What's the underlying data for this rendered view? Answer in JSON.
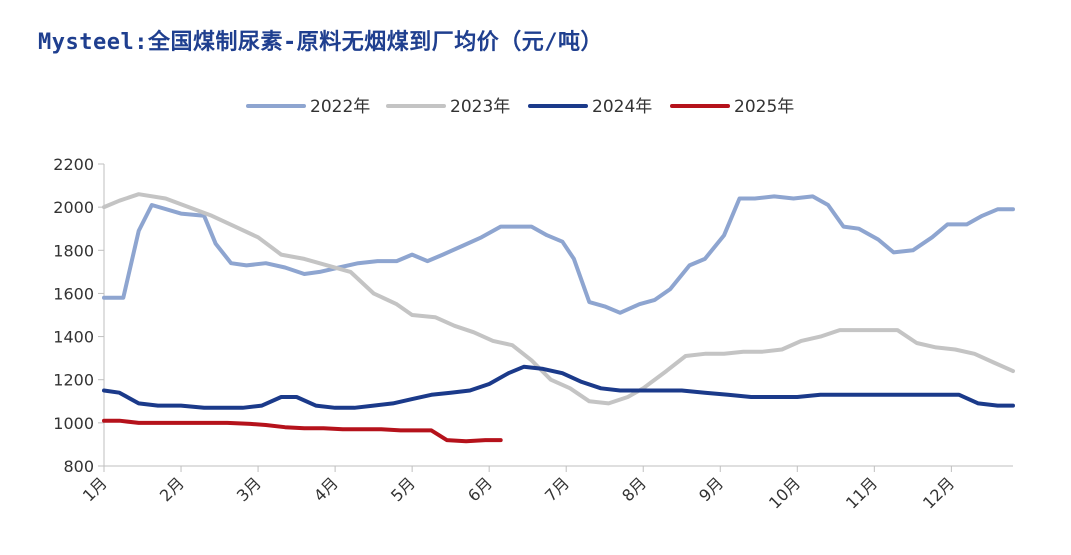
{
  "chart_data": {
    "type": "line",
    "title": "Mysteel:全国煤制尿素-原料无烟煤到厂均价（元/吨）",
    "xlabel": "",
    "ylabel": "",
    "ylim": [
      800,
      2200
    ],
    "yticks": [
      800,
      1000,
      1200,
      1400,
      1600,
      1800,
      2000,
      2200
    ],
    "xlim": [
      1,
      12.8
    ],
    "categories": [
      "1月",
      "2月",
      "3月",
      "4月",
      "5月",
      "6月",
      "7月",
      "8月",
      "9月",
      "10月",
      "11月",
      "12月"
    ],
    "grid": false,
    "legend": "top-center",
    "series": [
      {
        "name": "2022年",
        "color": "#8ea5d0",
        "x": [
          1.0,
          1.25,
          1.45,
          1.62,
          2.0,
          2.3,
          2.45,
          2.65,
          2.85,
          3.1,
          3.35,
          3.6,
          3.8,
          4.05,
          4.3,
          4.55,
          4.8,
          5.0,
          5.2,
          5.4,
          5.65,
          5.9,
          6.15,
          6.35,
          6.55,
          6.75,
          6.95,
          7.1,
          7.3,
          7.5,
          7.7,
          7.95,
          8.15,
          8.35,
          8.6,
          8.8,
          9.05,
          9.25,
          9.45,
          9.7,
          9.95,
          10.2,
          10.4,
          10.6,
          10.8,
          11.05,
          11.25,
          11.5,
          11.75,
          11.95,
          12.2,
          12.4,
          12.6,
          12.8
        ],
        "values": [
          1580,
          1580,
          1890,
          2010,
          1970,
          1960,
          1830,
          1740,
          1730,
          1740,
          1720,
          1690,
          1700,
          1720,
          1740,
          1750,
          1750,
          1780,
          1750,
          1780,
          1820,
          1860,
          1910,
          1910,
          1910,
          1870,
          1840,
          1760,
          1560,
          1540,
          1510,
          1550,
          1570,
          1620,
          1730,
          1760,
          1870,
          2040,
          2040,
          2050,
          2040,
          2050,
          2010,
          1910,
          1900,
          1850,
          1790,
          1800,
          1860,
          1920,
          1920,
          1960,
          1990,
          1990
        ]
      },
      {
        "name": "2023年",
        "color": "#c4c4c4",
        "x": [
          1.0,
          1.2,
          1.45,
          1.8,
          2.1,
          2.4,
          2.7,
          3.0,
          3.3,
          3.6,
          3.9,
          4.2,
          4.5,
          4.8,
          5.0,
          5.3,
          5.55,
          5.8,
          6.05,
          6.3,
          6.55,
          6.8,
          7.05,
          7.3,
          7.55,
          7.8,
          8.0,
          8.3,
          8.55,
          8.8,
          9.05,
          9.3,
          9.55,
          9.8,
          10.05,
          10.3,
          10.55,
          10.8,
          11.05,
          11.3,
          11.55,
          11.8,
          12.05,
          12.3,
          12.55,
          12.8
        ],
        "values": [
          2000,
          2030,
          2060,
          2040,
          2000,
          1960,
          1910,
          1860,
          1780,
          1760,
          1730,
          1700,
          1600,
          1550,
          1500,
          1490,
          1450,
          1420,
          1380,
          1360,
          1290,
          1200,
          1160,
          1100,
          1090,
          1120,
          1160,
          1240,
          1310,
          1320,
          1320,
          1330,
          1330,
          1340,
          1380,
          1400,
          1430,
          1430,
          1430,
          1430,
          1370,
          1350,
          1340,
          1320,
          1280,
          1240
        ]
      },
      {
        "name": "2024年",
        "color": "#1b3a8a",
        "x": [
          1.0,
          1.2,
          1.45,
          1.7,
          2.0,
          2.3,
          2.55,
          2.8,
          3.05,
          3.3,
          3.5,
          3.75,
          4.0,
          4.25,
          4.5,
          4.75,
          5.0,
          5.25,
          5.5,
          5.75,
          6.0,
          6.25,
          6.45,
          6.7,
          6.95,
          7.2,
          7.45,
          7.7,
          7.95,
          8.25,
          8.5,
          8.8,
          9.1,
          9.4,
          9.7,
          10.0,
          10.3,
          10.6,
          10.9,
          11.2,
          11.5,
          11.8,
          12.1,
          12.35,
          12.6,
          12.8
        ],
        "values": [
          1150,
          1140,
          1090,
          1080,
          1080,
          1070,
          1070,
          1070,
          1080,
          1120,
          1120,
          1080,
          1070,
          1070,
          1080,
          1090,
          1110,
          1130,
          1140,
          1150,
          1180,
          1230,
          1260,
          1250,
          1230,
          1190,
          1160,
          1150,
          1150,
          1150,
          1150,
          1140,
          1130,
          1120,
          1120,
          1120,
          1130,
          1130,
          1130,
          1130,
          1130,
          1130,
          1130,
          1090,
          1080,
          1080
        ]
      },
      {
        "name": "2025年",
        "color": "#b5121b",
        "x": [
          1.0,
          1.2,
          1.45,
          1.7,
          2.0,
          2.3,
          2.6,
          2.9,
          3.1,
          3.35,
          3.6,
          3.85,
          4.1,
          4.35,
          4.6,
          4.85,
          5.1,
          5.25,
          5.45,
          5.7,
          5.95,
          6.15
        ],
        "values": [
          1010,
          1010,
          1000,
          1000,
          1000,
          1000,
          1000,
          995,
          990,
          980,
          975,
          975,
          970,
          970,
          970,
          965,
          965,
          965,
          920,
          915,
          920,
          920
        ]
      }
    ]
  }
}
